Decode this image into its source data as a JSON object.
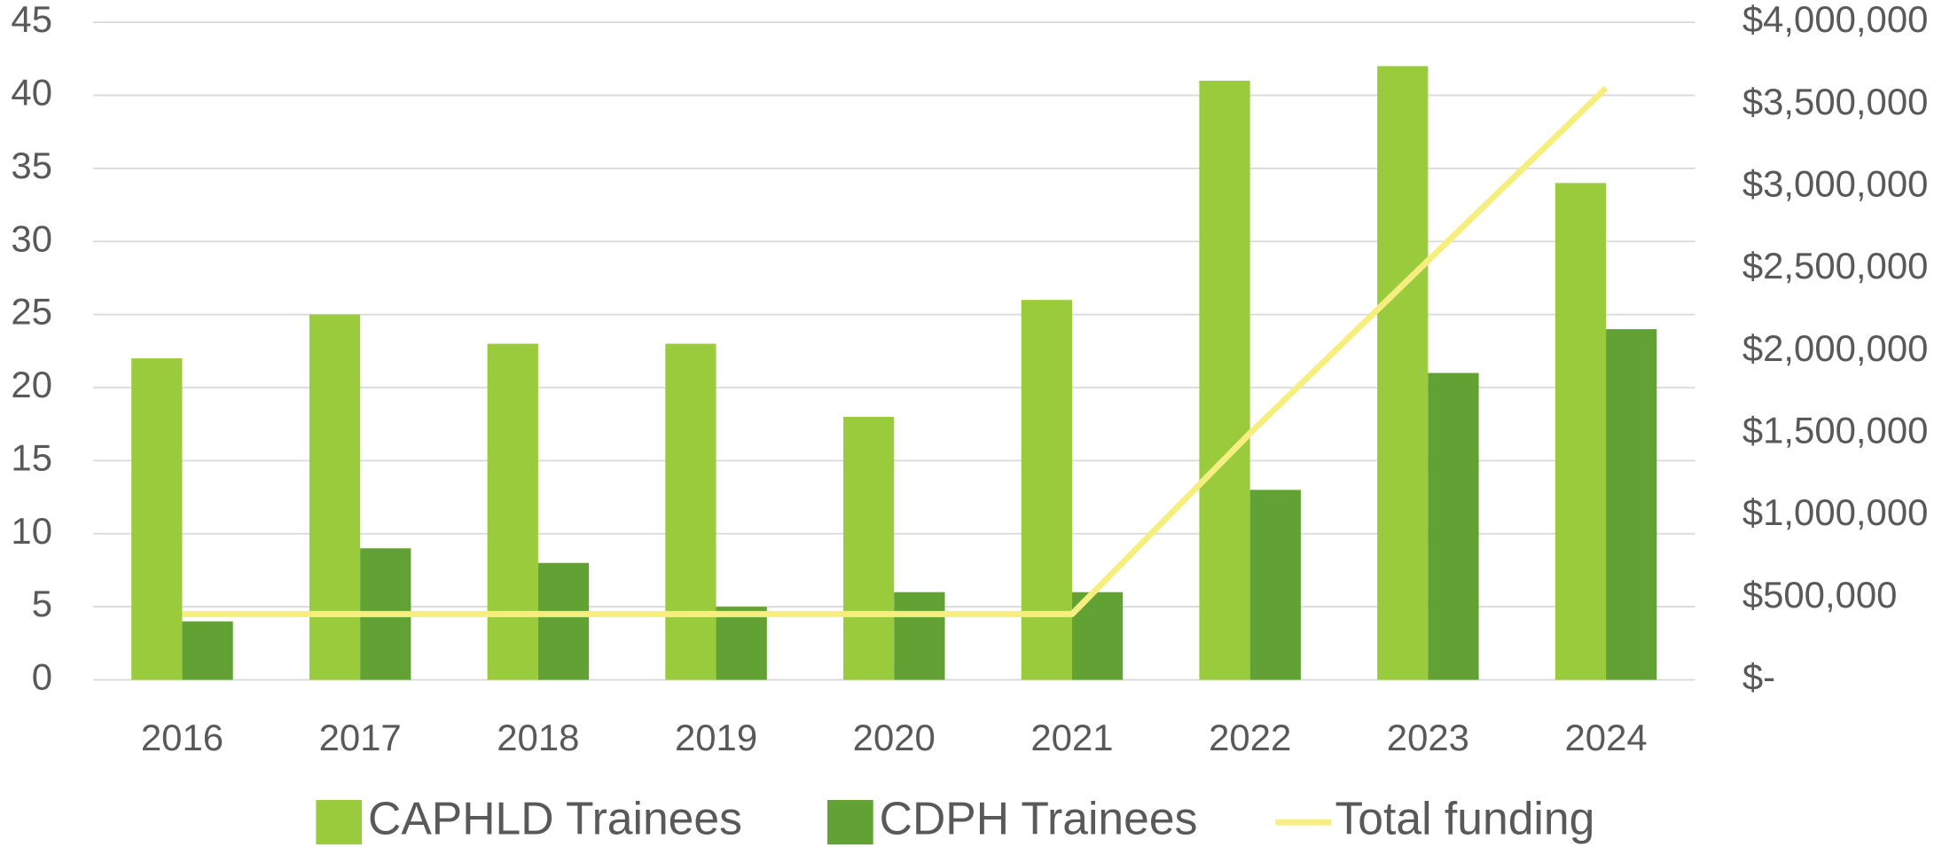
{
  "chart_data": {
    "type": "bar",
    "categories": [
      "2016",
      "2017",
      "2018",
      "2019",
      "2020",
      "2021",
      "2022",
      "2023",
      "2024"
    ],
    "series": [
      {
        "name": "CAPHLD Trainees",
        "color": "#9acb3c",
        "values": [
          22,
          25,
          23,
          23,
          18,
          26,
          41,
          42,
          34
        ]
      },
      {
        "name": "CDPH Trainees",
        "color": "#62a234",
        "values": [
          4,
          9,
          8,
          5,
          6,
          6,
          13,
          21,
          24
        ]
      },
      {
        "name": "Total funding",
        "color": "#f6ef80",
        "type": "line",
        "axis": "y2",
        "values": [
          400000,
          400000,
          400000,
          400000,
          400000,
          400000,
          1500000,
          2550000,
          3600000
        ]
      }
    ],
    "ylim": [
      0,
      45
    ],
    "yticks": [
      0,
      5,
      10,
      15,
      20,
      25,
      30,
      35,
      40,
      45
    ],
    "y2lim": [
      0,
      4000000
    ],
    "y2ticks": [
      {
        "value": 0,
        "label": "$-"
      },
      {
        "value": 500000,
        "label": "$500,000"
      },
      {
        "value": 1000000,
        "label": "$1,000,000"
      },
      {
        "value": 1500000,
        "label": "$1,500,000"
      },
      {
        "value": 2000000,
        "label": "$2,000,000"
      },
      {
        "value": 2500000,
        "label": "$2,500,000"
      },
      {
        "value": 3000000,
        "label": "$3,000,000"
      },
      {
        "value": 3500000,
        "label": "$3,500,000"
      },
      {
        "value": 4000000,
        "label": "$4,000,000"
      }
    ],
    "grid": true,
    "legend": "bottom"
  }
}
